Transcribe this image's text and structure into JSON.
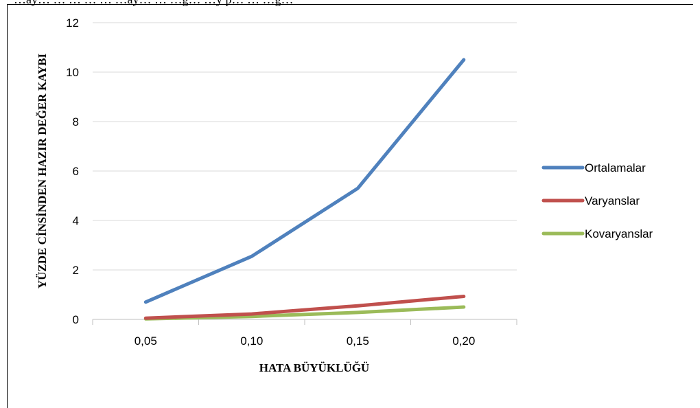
{
  "page": {
    "top_text": "…ay… … … … … …ay… … …g… …y p… … …g…"
  },
  "chart_data": {
    "type": "line",
    "categories": [
      "0,05",
      "0,10",
      "0,15",
      "0,20"
    ],
    "series": [
      {
        "name": "Ortalamalar",
        "values": [
          0.7,
          2.55,
          5.3,
          10.5
        ],
        "color": "#4F81BD"
      },
      {
        "name": "Varyanslar",
        "values": [
          0.05,
          0.22,
          0.55,
          0.93
        ],
        "color": "#C0504D"
      },
      {
        "name": "Kovaryanslar",
        "values": [
          0.02,
          0.12,
          0.28,
          0.5
        ],
        "color": "#9BBB59"
      }
    ],
    "ylim": [
      0,
      12
    ],
    "yticks": [
      "0",
      "2",
      "4",
      "6",
      "8",
      "10",
      "12"
    ],
    "xlabel": "HATA BÜYÜKLÜĞÜ",
    "ylabel": "YÜZDE CİNSİNDEN HAZIR  DEĞER KAYBI",
    "grid": true,
    "legend_position": "right"
  }
}
